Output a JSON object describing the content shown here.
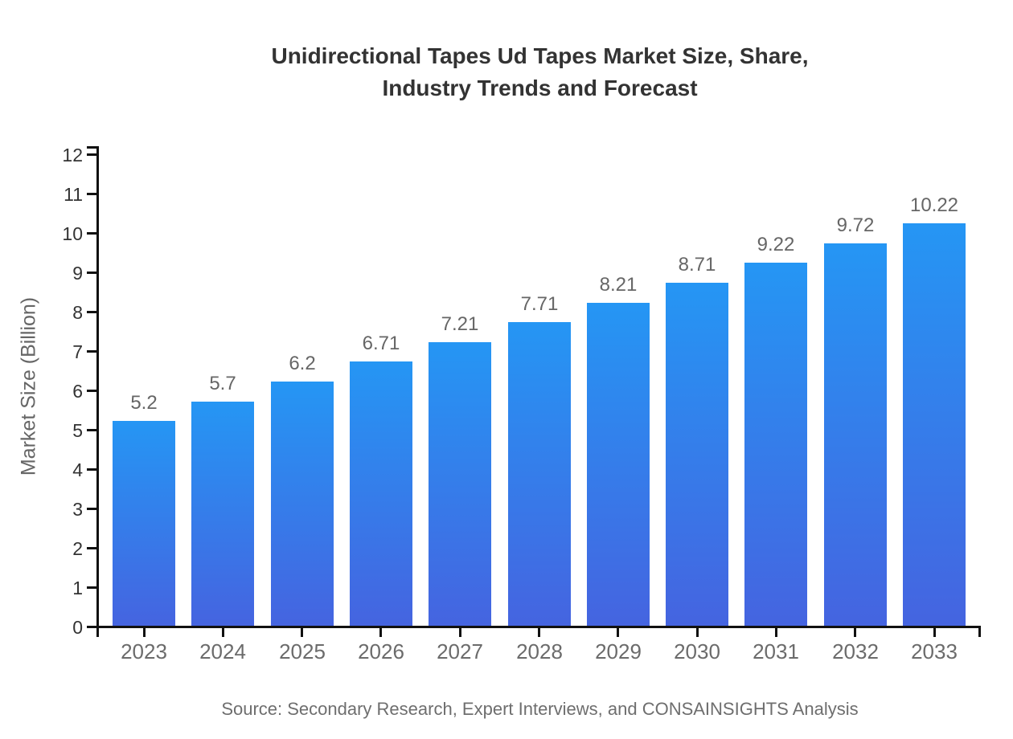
{
  "title_lines": [
    "Unidirectional Tapes Ud Tapes Market Size, Share,",
    "Industry Trends and Forecast"
  ],
  "source": "Source: Secondary Research, Expert Interviews, and CONSAINSIGHTS Analysis",
  "chart_data": {
    "type": "bar",
    "title": "Unidirectional Tapes Ud Tapes Market Size, Share, Industry Trends and Forecast",
    "categories": [
      "2023",
      "2024",
      "2025",
      "2026",
      "2027",
      "2028",
      "2029",
      "2030",
      "2031",
      "2032",
      "2033"
    ],
    "values": [
      5.2,
      5.7,
      6.2,
      6.71,
      7.21,
      7.71,
      8.21,
      8.71,
      9.22,
      9.72,
      10.22
    ],
    "value_labels": [
      "5.2",
      "5.7",
      "6.2",
      "6.71",
      "7.21",
      "7.71",
      "8.21",
      "8.71",
      "9.22",
      "9.72",
      "10.22"
    ],
    "xlabel": "",
    "ylabel": "Market Size (Billion)",
    "ylim": [
      0,
      12
    ],
    "ytick_step": 1,
    "grid": false,
    "legend_position": "none",
    "colors": {
      "bar_gradient_top": "#2596f4",
      "bar_gradient_bottom": "#4564e0",
      "axis": "#111111",
      "title": "#333333",
      "ytick_label": "#333333",
      "xtick_label": "#6b6b6b",
      "value_label": "#666666"
    }
  }
}
